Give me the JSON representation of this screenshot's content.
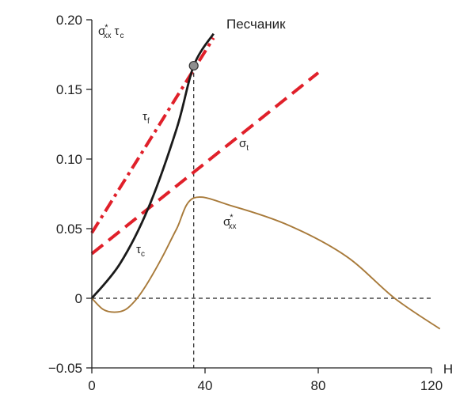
{
  "chart_data": {
    "type": "line",
    "title": "Песчаник",
    "xlabel": "H",
    "ylabel": "σ*xx τc",
    "xlim": [
      0,
      120
    ],
    "ylim": [
      -0.05,
      0.2
    ],
    "xticks": [
      {
        "value": 0,
        "label": "0"
      },
      {
        "value": 40,
        "label": "40"
      },
      {
        "value": 80,
        "label": "80"
      },
      {
        "value": 120,
        "label": "120"
      }
    ],
    "yticks": [
      {
        "value": 0.2,
        "label": "0.20"
      },
      {
        "value": 0.15,
        "label": "0.15"
      },
      {
        "value": 0.1,
        "label": "0.10"
      },
      {
        "value": 0.05,
        "label": "0.05"
      },
      {
        "value": 0,
        "label": "0"
      },
      {
        "value": -0.05,
        "label": "−0.05"
      }
    ],
    "series": [
      {
        "name": "τf",
        "label": {
          "main": "τ",
          "sub": "f"
        },
        "style": "dash-dot",
        "color": "#e0202a",
        "x": [
          0,
          43
        ],
        "y": [
          0.047,
          0.187
        ]
      },
      {
        "name": "σt",
        "label": {
          "main": "σ",
          "sub": "t"
        },
        "style": "dashed",
        "color": "#e0202a",
        "x": [
          0,
          80
        ],
        "y": [
          0.032,
          0.162
        ]
      },
      {
        "name": "τc",
        "label": {
          "main": "τ",
          "sub": "c"
        },
        "style": "solid",
        "color": "#1a1a1a",
        "x": [
          0,
          10,
          20,
          30,
          36,
          43
        ],
        "y": [
          0,
          0.025,
          0.065,
          0.122,
          0.167,
          0.19
        ]
      },
      {
        "name": "σ*xx",
        "label": {
          "main": "σ",
          "sup": "*",
          "sub": "xx"
        },
        "style": "solid",
        "color": "#a87a3a",
        "x": [
          0,
          4,
          8,
          12,
          16,
          20,
          25,
          30,
          36,
          50,
          70,
          90,
          107,
          123
        ],
        "y": [
          0,
          -0.008,
          -0.01,
          -0.008,
          0,
          0.012,
          0.03,
          0.05,
          0.072,
          0.066,
          0.052,
          0.03,
          0,
          -0.022
        ]
      }
    ],
    "reference_lines": [
      {
        "orientation": "horizontal",
        "value": 0,
        "style": "dashed"
      },
      {
        "orientation": "vertical",
        "value": 36,
        "style": "dashed"
      }
    ],
    "marker": {
      "x": 36,
      "y": 0.167,
      "color": "#8f8f8f"
    }
  }
}
